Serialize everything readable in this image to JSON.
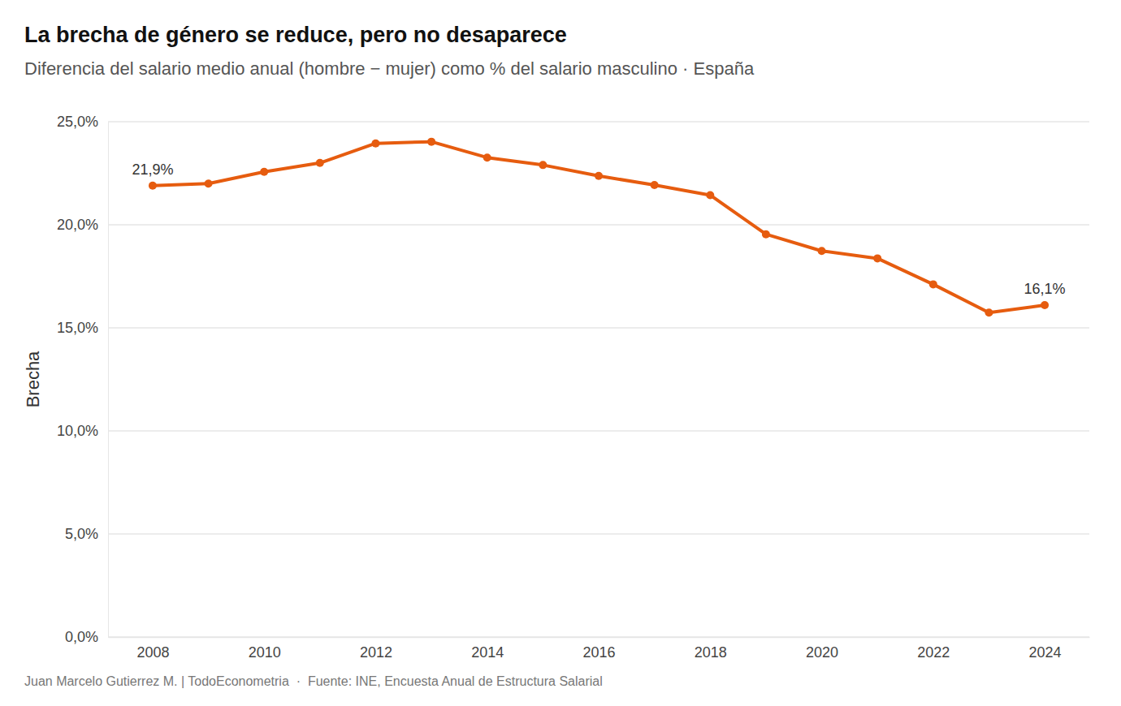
{
  "chart_data": {
    "type": "line",
    "title": "La brecha de género se reduce, pero no desaparece",
    "subtitle": "Diferencia del salario medio anual (hombre − mujer) como % del salario masculino · España",
    "y_label": "Brecha",
    "caption": "Juan Marcelo Gutierrez M. | TodoEconometria  ·  Fuente: INE, Encuesta Anual de Estructura Salarial",
    "x": [
      2008,
      2009,
      2010,
      2011,
      2012,
      2013,
      2014,
      2015,
      2016,
      2017,
      2018,
      2019,
      2020,
      2021,
      2022,
      2023,
      2024
    ],
    "values": [
      21.9,
      22.0,
      22.57,
      23.0,
      23.95,
      24.03,
      23.26,
      22.9,
      22.37,
      21.93,
      21.44,
      19.54,
      18.73,
      18.37,
      17.11,
      15.74,
      16.1
    ],
    "value_labels": [
      "21,9%",
      null,
      null,
      null,
      null,
      null,
      null,
      null,
      null,
      null,
      null,
      null,
      null,
      null,
      null,
      null,
      "16,1%"
    ],
    "color": "#e65c0f",
    "marker": "circle",
    "xlim": [
      2007.2,
      2024.8
    ],
    "xticks": [
      2008,
      2010,
      2012,
      2014,
      2016,
      2018,
      2020,
      2022,
      2024
    ],
    "ylim": [
      0,
      25
    ],
    "yticks": [
      {
        "value": 0,
        "label": "0,0%"
      },
      {
        "value": 5,
        "label": "5,0%"
      },
      {
        "value": 10,
        "label": "10,0%"
      },
      {
        "value": 15,
        "label": "15,0%"
      },
      {
        "value": 20,
        "label": "20,0%"
      },
      {
        "value": 25,
        "label": "25,0%"
      }
    ],
    "grid": "y"
  }
}
